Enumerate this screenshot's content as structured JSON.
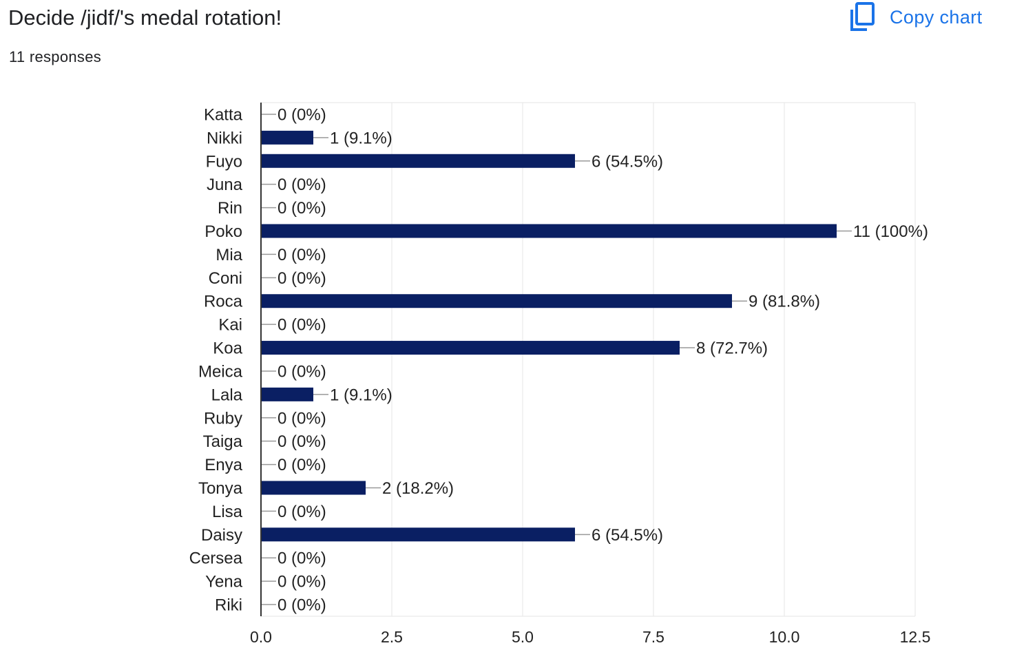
{
  "header": {
    "title": "Decide /jidf/'s medal rotation!",
    "responses": "11 responses",
    "copy_label": "Copy chart",
    "copy_icon": "copy-icon"
  },
  "colors": {
    "bar": "#0a1f63",
    "accent": "#1a73e8",
    "grid": "#e6e6e6",
    "axis": "#333333",
    "leader": "#999999"
  },
  "chart_data": {
    "type": "bar",
    "orientation": "horizontal",
    "title": "Decide /jidf/'s medal rotation!",
    "subtitle": "11 responses",
    "xlim": [
      0,
      12.5
    ],
    "x_ticks": [
      "0.0",
      "2.5",
      "5.0",
      "7.5",
      "10.0",
      "12.5"
    ],
    "grid": true,
    "categories": [
      "Katta",
      "Nikki",
      "Fuyo",
      "Juna",
      "Rin",
      "Poko",
      "Mia",
      "Coni",
      "Roca",
      "Kai",
      "Koa",
      "Meica",
      "Lala",
      "Ruby",
      "Taiga",
      "Enya",
      "Tonya",
      "Lisa",
      "Daisy",
      "Cersea",
      "Yena",
      "Riki"
    ],
    "values": [
      0,
      1,
      6,
      0,
      0,
      11,
      0,
      0,
      9,
      0,
      8,
      0,
      1,
      0,
      0,
      0,
      2,
      0,
      6,
      0,
      0,
      0
    ],
    "data_labels": [
      "0 (0%)",
      "1 (9.1%)",
      "6 (54.5%)",
      "0 (0%)",
      "0 (0%)",
      "11 (100%)",
      "0 (0%)",
      "0 (0%)",
      "9 (81.8%)",
      "0 (0%)",
      "8 (72.7%)",
      "0 (0%)",
      "1 (9.1%)",
      "0 (0%)",
      "0 (0%)",
      "0 (0%)",
      "2 (18.2%)",
      "0 (0%)",
      "6 (54.5%)",
      "0 (0%)",
      "0 (0%)",
      "0 (0%)"
    ]
  }
}
